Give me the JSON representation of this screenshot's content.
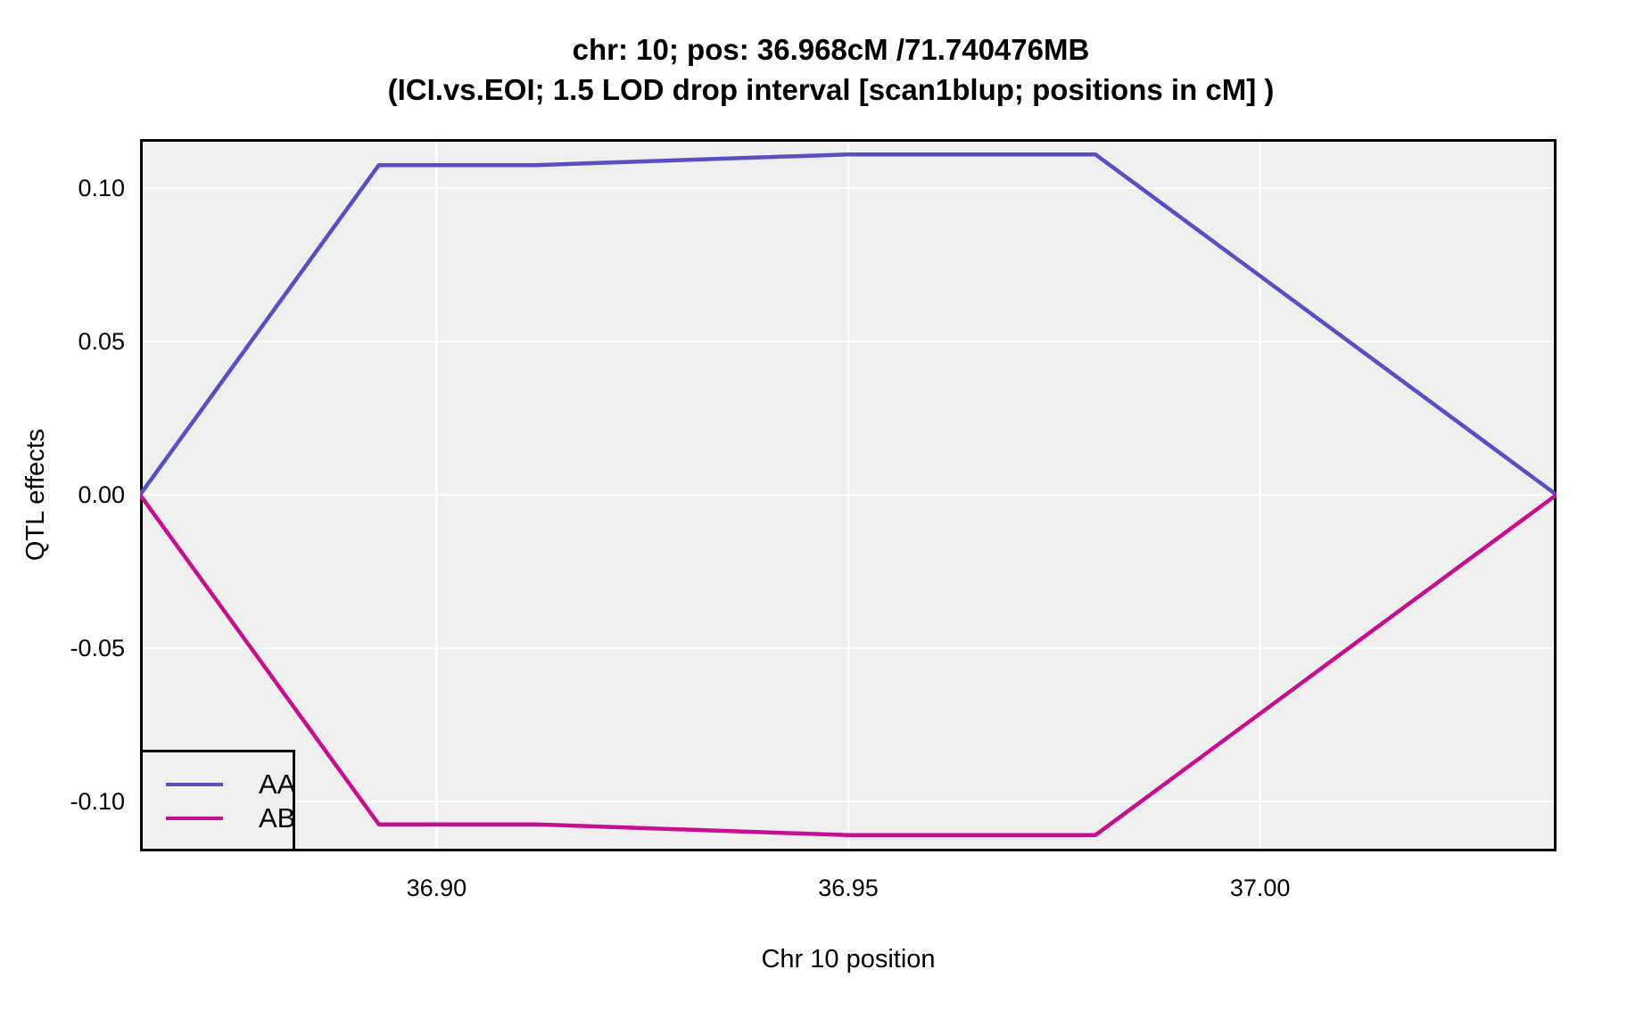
{
  "chart_data": {
    "type": "line",
    "title": "chr: 10; pos: 36.968cM /71.740476MB",
    "subtitle": "(ICI.vs.EOI; 1.5 LOD drop interval [scan1blup; positions in cM] )",
    "xlabel": "Chr 10 position",
    "ylabel": "QTL effects",
    "x": [
      36.864,
      36.893,
      36.912,
      36.95,
      36.98,
      37.036
    ],
    "series": [
      {
        "name": "AA",
        "color": "#5a4ec4",
        "values": [
          0,
          0.1075,
          0.1075,
          0.111,
          0.111,
          0
        ]
      },
      {
        "name": "AB",
        "color": "#c60f8e",
        "values": [
          0,
          -0.1075,
          -0.1075,
          -0.111,
          -0.111,
          0
        ]
      }
    ],
    "xlim": [
      36.864,
      37.036
    ],
    "ylim": [
      -0.1163,
      0.116
    ],
    "xticks": [
      36.9,
      36.95,
      37.0
    ],
    "xtick_labels": [
      "36.90",
      "36.95",
      "37.00"
    ],
    "yticks": [
      0.1,
      0.05,
      0.0,
      -0.05,
      -0.1
    ],
    "ytick_labels": [
      "0.10",
      "0.05",
      "0.00",
      "-0.05",
      "-0.10"
    ],
    "grid": true,
    "legend_position": "bottom-left",
    "colors": {
      "panel_background": "#efefef",
      "gridline": "#ffffff",
      "panel_border": "#000000",
      "text": "#000000"
    }
  }
}
